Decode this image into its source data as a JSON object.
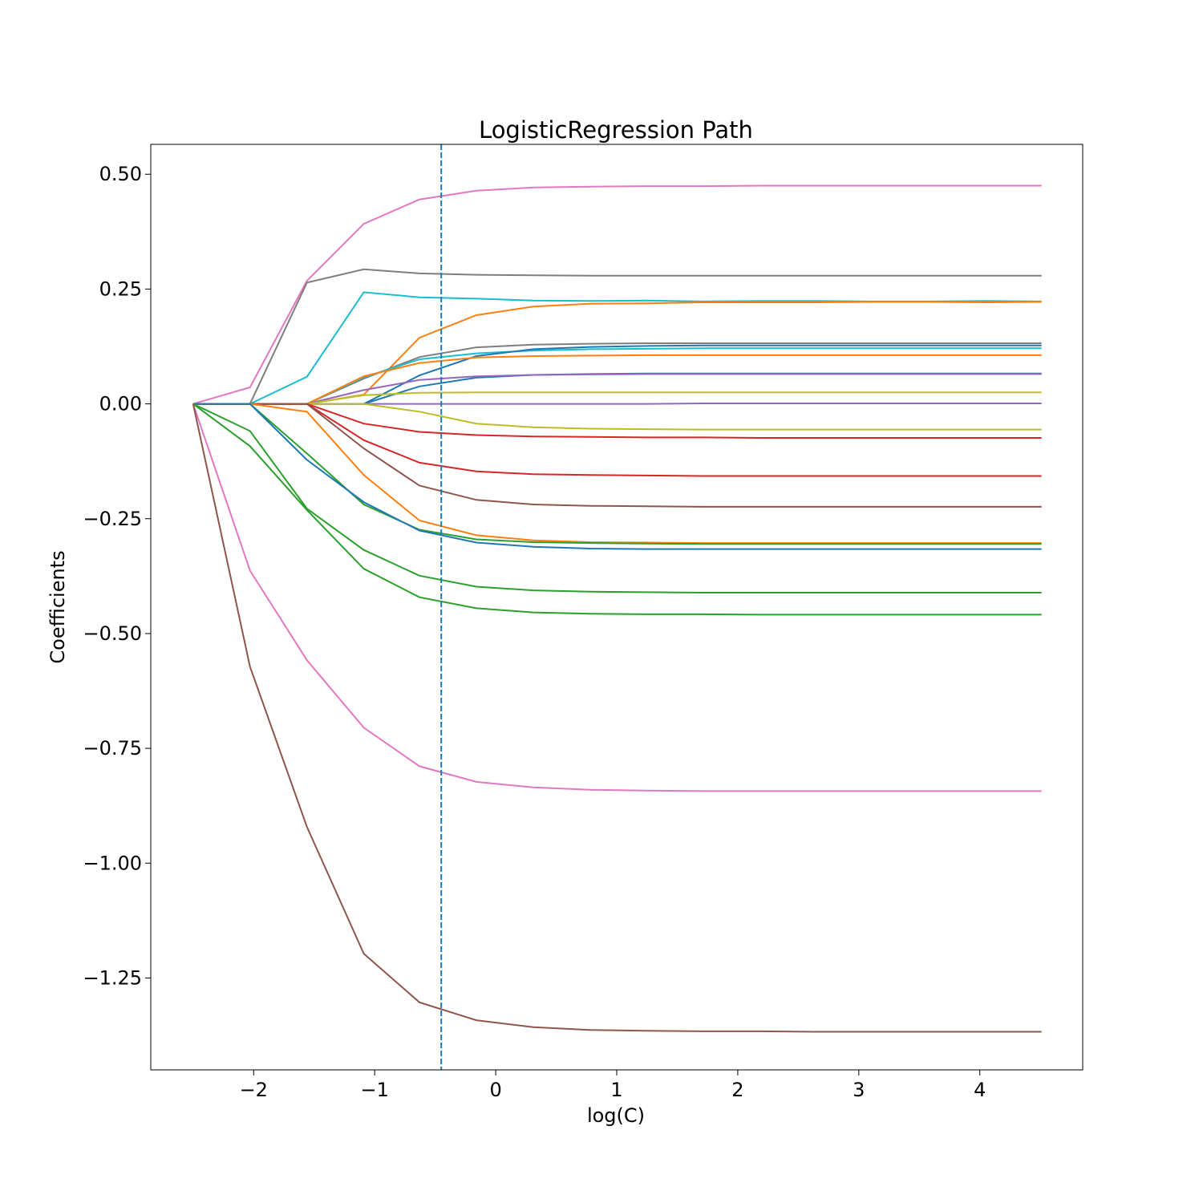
{
  "chart_data": {
    "type": "line",
    "title": "LogisticRegression Path",
    "xlabel": "log(C)",
    "ylabel": "Coefficients",
    "xlim": [
      -2.85,
      4.85
    ],
    "ylim": [
      -1.45,
      0.565
    ],
    "xticks": [
      -2,
      -1,
      0,
      1,
      2,
      3,
      4
    ],
    "xtick_labels": [
      "−2",
      "−1",
      "0",
      "1",
      "2",
      "3",
      "4"
    ],
    "yticks": [
      0.5,
      0.25,
      0.0,
      -0.25,
      -0.5,
      -0.75,
      -1.0,
      -1.25
    ],
    "ytick_labels": [
      "0.50",
      "0.25",
      "0.00",
      "−0.25",
      "−0.50",
      "−0.75",
      "−1.00",
      "−1.25"
    ],
    "grid": false,
    "x": [
      -2.5,
      -2.03,
      -1.56,
      -1.09,
      -0.63,
      -0.16,
      0.31,
      0.78,
      1.24,
      1.71,
      2.18,
      2.64,
      3.11,
      3.58,
      4.05,
      4.51
    ],
    "vline": {
      "x": -0.45,
      "style": "dashed",
      "color": "#1f77b4"
    },
    "series": [
      {
        "color": "#e377c2",
        "values": [
          0,
          0.036,
          0.268,
          0.392,
          0.445,
          0.464,
          0.471,
          0.473,
          0.474,
          0.474,
          0.475,
          0.475,
          0.475,
          0.475,
          0.475,
          0.475
        ]
      },
      {
        "color": "#7f7f7f",
        "values": [
          0,
          0,
          0.264,
          0.293,
          0.284,
          0.281,
          0.28,
          0.279,
          0.279,
          0.279,
          0.279,
          0.279,
          0.279,
          0.279,
          0.279,
          0.279
        ]
      },
      {
        "color": "#17becf",
        "values": [
          0,
          0,
          0.059,
          0.243,
          0.232,
          0.229,
          0.225,
          0.224,
          0.225,
          0.223,
          0.224,
          0.224,
          0.223,
          0.223,
          0.224,
          0.223
        ]
      },
      {
        "color": "#ff7f0e",
        "values": [
          0,
          0,
          0,
          0.02,
          0.144,
          0.193,
          0.212,
          0.218,
          0.219,
          0.221,
          0.221,
          0.221,
          0.222,
          0.222,
          0.221,
          0.222
        ]
      },
      {
        "color": "#7f7f7f",
        "values": [
          0,
          0,
          0,
          0.055,
          0.102,
          0.123,
          0.129,
          0.131,
          0.132,
          0.132,
          0.132,
          0.132,
          0.132,
          0.132,
          0.132,
          0.132
        ]
      },
      {
        "color": "#17becf",
        "values": [
          0,
          0,
          0,
          0.058,
          0.097,
          0.11,
          0.116,
          0.119,
          0.12,
          0.121,
          0.121,
          0.121,
          0.121,
          0.121,
          0.121,
          0.121
        ]
      },
      {
        "color": "#1f77b4",
        "values": [
          0,
          0,
          0,
          0,
          0.062,
          0.104,
          0.119,
          0.124,
          0.126,
          0.127,
          0.127,
          0.127,
          0.127,
          0.127,
          0.127,
          0.127
        ]
      },
      {
        "color": "#ff7f0e",
        "values": [
          0,
          0,
          0,
          0.06,
          0.089,
          0.101,
          0.104,
          0.105,
          0.106,
          0.106,
          0.106,
          0.106,
          0.106,
          0.106,
          0.106,
          0.106
        ]
      },
      {
        "color": "#1f77b4",
        "values": [
          0,
          0,
          0,
          0,
          0.038,
          0.057,
          0.063,
          0.065,
          0.066,
          0.066,
          0.066,
          0.066,
          0.066,
          0.066,
          0.066,
          0.066
        ]
      },
      {
        "color": "#9467bd",
        "values": [
          0,
          0,
          0,
          0.03,
          0.052,
          0.06,
          0.063,
          0.064,
          0.065,
          0.065,
          0.065,
          0.065,
          0.065,
          0.065,
          0.065,
          0.065
        ]
      },
      {
        "color": "#bcbd22",
        "values": [
          0,
          0,
          0,
          0.019,
          0.024,
          0.025,
          0.025,
          0.025,
          0.025,
          0.025,
          0.025,
          0.025,
          0.025,
          0.025,
          0.025,
          0.025
        ]
      },
      {
        "color": "#9467bd",
        "values": [
          0,
          0,
          0,
          0,
          0,
          0,
          0,
          0,
          0,
          0.001,
          0.001,
          0.001,
          0.001,
          0.001,
          0.001,
          0.001
        ]
      },
      {
        "color": "#bcbd22",
        "values": [
          0,
          0,
          0,
          0,
          -0.017,
          -0.043,
          -0.051,
          -0.054,
          -0.055,
          -0.056,
          -0.056,
          -0.056,
          -0.056,
          -0.056,
          -0.056,
          -0.056
        ]
      },
      {
        "color": "#d62728",
        "values": [
          0,
          0,
          0,
          -0.043,
          -0.061,
          -0.068,
          -0.071,
          -0.072,
          -0.073,
          -0.073,
          -0.074,
          -0.074,
          -0.074,
          -0.074,
          -0.074,
          -0.074
        ]
      },
      {
        "color": "#d62728",
        "values": [
          0,
          0,
          0,
          -0.079,
          -0.128,
          -0.147,
          -0.153,
          -0.155,
          -0.156,
          -0.157,
          -0.157,
          -0.157,
          -0.157,
          -0.157,
          -0.157,
          -0.157
        ]
      },
      {
        "color": "#8c564b",
        "values": [
          0,
          0,
          0,
          -0.097,
          -0.178,
          -0.209,
          -0.219,
          -0.222,
          -0.223,
          -0.224,
          -0.224,
          -0.224,
          -0.224,
          -0.224,
          -0.224,
          -0.224
        ]
      },
      {
        "color": "#ff7f0e",
        "values": [
          0,
          0,
          -0.017,
          -0.155,
          -0.254,
          -0.286,
          -0.297,
          -0.301,
          -0.302,
          -0.303,
          -0.303,
          -0.303,
          -0.303,
          -0.303,
          -0.303,
          -0.303
        ]
      },
      {
        "color": "#2ca02c",
        "values": [
          0,
          0,
          -0.108,
          -0.219,
          -0.274,
          -0.295,
          -0.301,
          -0.303,
          -0.304,
          -0.305,
          -0.305,
          -0.305,
          -0.305,
          -0.305,
          -0.305,
          -0.305
        ]
      },
      {
        "color": "#1f77b4",
        "values": [
          0,
          0,
          -0.122,
          -0.214,
          -0.276,
          -0.302,
          -0.311,
          -0.315,
          -0.316,
          -0.316,
          -0.316,
          -0.316,
          -0.316,
          -0.316,
          -0.316,
          -0.316
        ]
      },
      {
        "color": "#2ca02c",
        "values": [
          0,
          -0.059,
          -0.228,
          -0.318,
          -0.374,
          -0.398,
          -0.406,
          -0.409,
          -0.41,
          -0.411,
          -0.411,
          -0.411,
          -0.411,
          -0.411,
          -0.411,
          -0.411
        ]
      },
      {
        "color": "#2ca02c",
        "values": [
          0,
          -0.092,
          -0.231,
          -0.359,
          -0.421,
          -0.445,
          -0.454,
          -0.457,
          -0.458,
          -0.458,
          -0.459,
          -0.459,
          -0.459,
          -0.459,
          -0.459,
          -0.459
        ]
      },
      {
        "color": "#e377c2",
        "values": [
          0,
          -0.363,
          -0.558,
          -0.705,
          -0.789,
          -0.823,
          -0.835,
          -0.84,
          -0.842,
          -0.843,
          -0.843,
          -0.843,
          -0.843,
          -0.843,
          -0.843,
          -0.843
        ]
      },
      {
        "color": "#8c564b",
        "values": [
          0,
          -0.572,
          -0.921,
          -1.197,
          -1.303,
          -1.342,
          -1.357,
          -1.363,
          -1.365,
          -1.366,
          -1.366,
          -1.367,
          -1.367,
          -1.367,
          -1.367,
          -1.367
        ]
      }
    ]
  }
}
